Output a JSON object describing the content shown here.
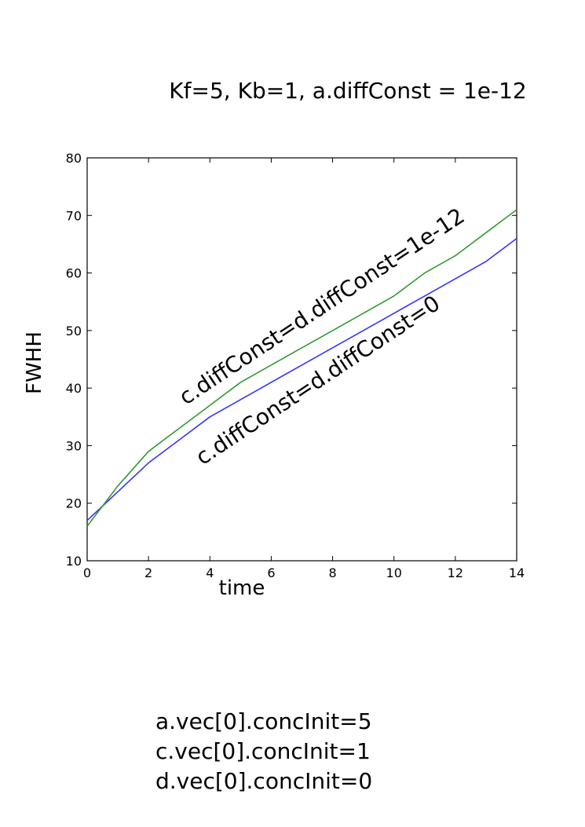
{
  "chart_data": {
    "type": "line",
    "title": "Kf=5, Kb=1, a.diffConst = 1e-12",
    "xlabel": "time",
    "ylabel": "FWHH",
    "xlim": [
      0,
      14
    ],
    "ylim": [
      10,
      80
    ],
    "x_ticks": [
      "0",
      "2",
      "4",
      "6",
      "8",
      "10",
      "12",
      "14"
    ],
    "y_ticks": [
      "10",
      "20",
      "30",
      "40",
      "50",
      "60",
      "70",
      "80"
    ],
    "grid": false,
    "legend": "none",
    "x": [
      0,
      1,
      2,
      3,
      4,
      5,
      6,
      7,
      8,
      9,
      10,
      11,
      12,
      13,
      14
    ],
    "series": [
      {
        "color": "#3333ff",
        "values": [
          17,
          22,
          27,
          31,
          35,
          38,
          41,
          44,
          47,
          50,
          53,
          56,
          59,
          62,
          66
        ]
      },
      {
        "color": "#339933",
        "values": [
          16,
          23,
          29,
          33,
          37,
          41,
          44,
          47,
          50,
          53,
          56,
          60,
          63,
          67,
          71
        ]
      }
    ],
    "annotations": [
      {
        "text": "c.diffConst=d.diffConst=1e-12",
        "color": "#000000"
      },
      {
        "text": "c.diffConst=d.diffConst=0",
        "color": "#000000"
      }
    ]
  },
  "notes": [
    "a.vec[0].concInit=5",
    "c.vec[0].concInit=1",
    "d.vec[0].concInit=0"
  ]
}
